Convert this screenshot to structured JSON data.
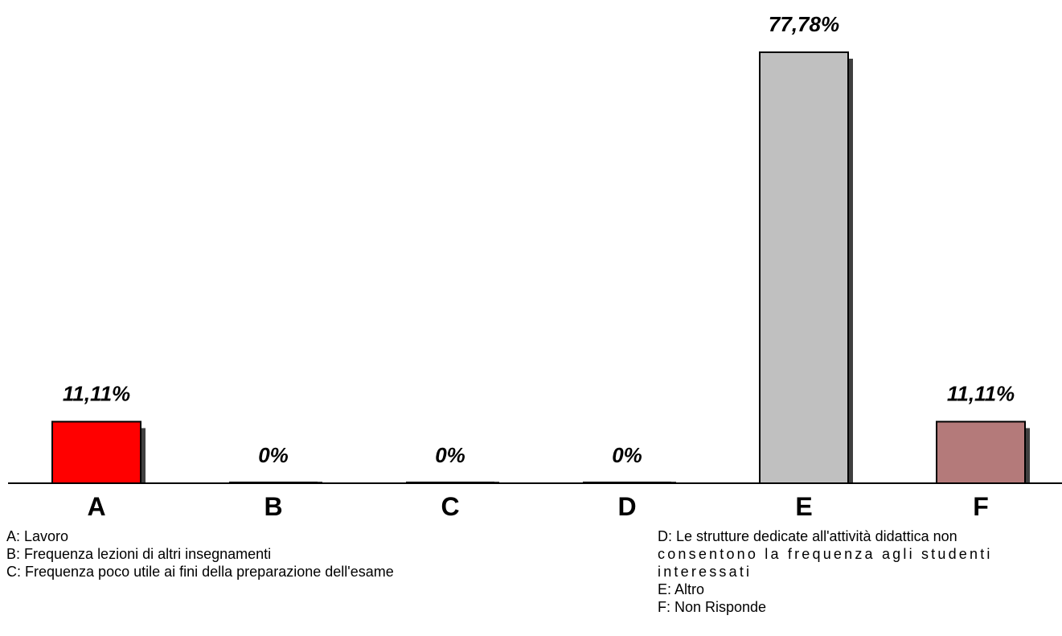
{
  "chart_data": {
    "type": "bar",
    "categories": [
      "A",
      "B",
      "C",
      "D",
      "E",
      "F"
    ],
    "values": [
      11.11,
      0,
      0,
      0,
      77.78,
      11.11
    ],
    "value_labels": [
      "11,11%",
      "0%",
      "0%",
      "0%",
      "77,78%",
      "11,11%"
    ],
    "colors": [
      "#ff0000",
      "#c0c0c0",
      "#c0c0c0",
      "#c0c0c0",
      "#c0c0c0",
      "#b47a7a"
    ],
    "shadow_color": "#404040",
    "ylim": [
      0,
      77.78
    ],
    "grid": false,
    "legend_position": "bottom"
  },
  "legend": {
    "left": [
      "A: Lavoro",
      "B: Frequenza lezioni di altri insegnamenti",
      "C: Frequenza poco utile ai fini della preparazione dell'esame"
    ],
    "right": [
      "D: Le strutture dedicate all'attività didattica non",
      "consentono la frequenza agli studenti",
      "interessati",
      "E: Altro",
      "F: Non Risponde"
    ]
  }
}
